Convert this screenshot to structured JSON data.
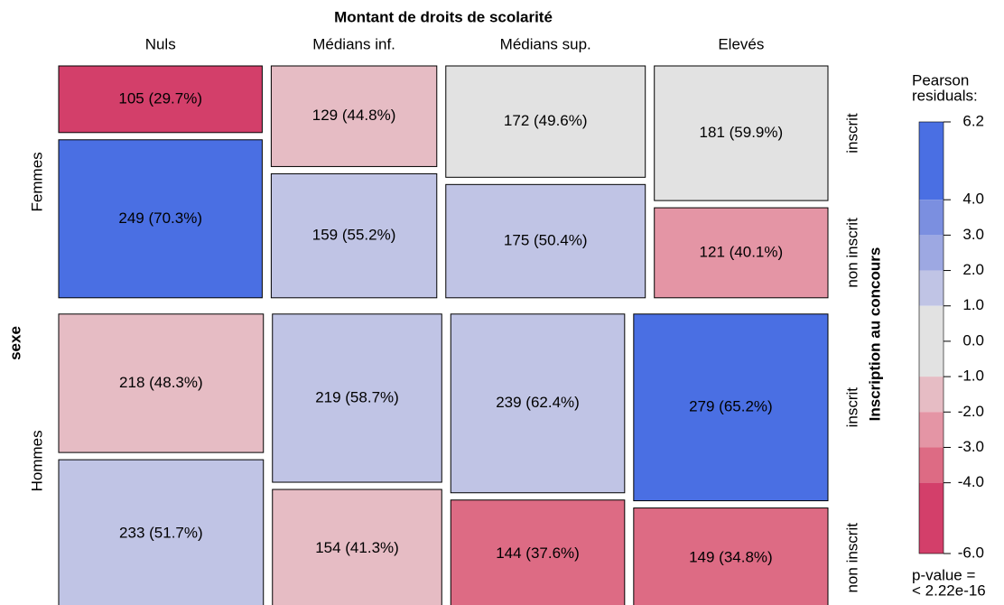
{
  "chart_data": {
    "type": "mosaic",
    "title": "Montant de droits de scolarité",
    "categories": [
      "Nuls",
      "Médians inf.",
      "Médians sup.",
      "Elevés"
    ],
    "rows_label": "sexe",
    "rows": [
      "Femmes",
      "Hommes"
    ],
    "inner_label": "Inscription au concours",
    "inner": [
      "inscrit",
      "non inscrit"
    ],
    "values": [
      [
        [
          105,
          249
        ],
        [
          129,
          159
        ],
        [
          172,
          175
        ],
        [
          181,
          121
        ]
      ],
      [
        [
          218,
          233
        ],
        [
          219,
          154
        ],
        [
          239,
          144
        ],
        [
          279,
          149
        ]
      ]
    ],
    "value_labels": [
      [
        [
          "105 (29.7%)",
          "249 (70.3%)"
        ],
        [
          "129 (44.8%)",
          "159 (55.2%)"
        ],
        [
          "172 (49.6%)",
          "175 (50.4%)"
        ],
        [
          "181 (59.9%)",
          "121 (40.1%)"
        ]
      ],
      [
        [
          "218 (48.3%)",
          "233 (51.7%)"
        ],
        [
          "219 (58.7%)",
          "154 (41.3%)"
        ],
        [
          "239 (62.4%)",
          "144 (37.6%)"
        ],
        [
          "279 (65.2%)",
          "149 (34.8%)"
        ]
      ]
    ],
    "colors": [
      [
        [
          "#d33f6a",
          "#4a6fe3"
        ],
        [
          "#e6bcc4",
          "#c0c4e5"
        ],
        [
          "#e2e2e2",
          "#c0c4e5"
        ],
        [
          "#e2e2e2",
          "#e495a5"
        ]
      ],
      [
        [
          "#e6bcc4",
          "#c0c4e5"
        ],
        [
          "#c0c4e5",
          "#e6bcc4"
        ],
        [
          "#c0c4e5",
          "#dd6b84"
        ],
        [
          "#4a6fe3",
          "#dd6b84"
        ]
      ]
    ],
    "legend_title": [
      "Pearson",
      "residuals:"
    ],
    "ylim": [
      -6,
      6.2
    ],
    "yticks": [
      {
        "value": 6.2,
        "label": "6.2"
      },
      {
        "value": 4,
        "label": "4.0"
      },
      {
        "value": 3,
        "label": "3.0"
      },
      {
        "value": 2,
        "label": "2.0"
      },
      {
        "value": 1,
        "label": "1.0"
      },
      {
        "value": 0,
        "label": "0.0"
      },
      {
        "value": -1,
        "label": "-1.0"
      },
      {
        "value": -2,
        "label": "-2.0"
      },
      {
        "value": -3,
        "label": "-3.0"
      },
      {
        "value": -4,
        "label": "-4.0"
      },
      {
        "value": -6,
        "label": "-6.0"
      }
    ],
    "color_bands": [
      {
        "range": [
          4,
          6.2
        ],
        "color": "#4a6fe3"
      },
      {
        "range": [
          3,
          4
        ],
        "color": "#7b8fe0"
      },
      {
        "range": [
          2,
          3
        ],
        "color": "#9da8e2"
      },
      {
        "range": [
          1,
          2
        ],
        "color": "#c0c4e5"
      },
      {
        "range": [
          -1,
          1
        ],
        "color": "#e2e2e2"
      },
      {
        "range": [
          -2,
          -1
        ],
        "color": "#e6bcc4"
      },
      {
        "range": [
          -3,
          -2
        ],
        "color": "#e495a5"
      },
      {
        "range": [
          -4,
          -3
        ],
        "color": "#dd6b84"
      },
      {
        "range": [
          -6,
          -4
        ],
        "color": "#d33f6a"
      }
    ],
    "pvalue_text": [
      "p-value =",
      "< 2.22e-16"
    ]
  }
}
